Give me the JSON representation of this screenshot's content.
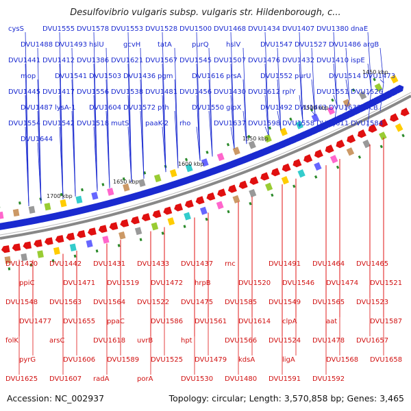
{
  "title": "Desulfovibrio vulgaris subsp. vulgaris str. Hildenborough, c...",
  "footer": {
    "accession": "Accession: NC_002937",
    "summary": "Topology: circular; Length: 3,570,858 bp; Genes: 3,465"
  },
  "colors": {
    "forward": "#1a2ad0",
    "reverse": "#e01010",
    "backbone": "#888888",
    "tick": "#2a8a2a"
  },
  "kbp_labels": [
    "1450 kbp",
    "1500 kbp",
    "1550 kbp",
    "1600 kbp",
    "1650 kbp",
    "1700 kbp"
  ],
  "top_genes": [
    "cysS",
    "DVU1555",
    "DVU1578",
    "DVU1553",
    "DVU1528",
    "DVU1500",
    "DVU1468",
    "DVU1434",
    "DVU1407",
    "DVU1380",
    "dnaE",
    "DVU1488",
    "DVU1493",
    "hslU",
    "gcvH",
    "tatA",
    "purQ",
    "hslV",
    "DVU1547",
    "DVU1527",
    "DVU1486",
    "argB",
    "DVU1441",
    "DVU1412",
    "DVU1386",
    "DVU1621",
    "DVU1567",
    "DVU1545",
    "DVU1507",
    "DVU1476",
    "DVU1432",
    "DVU1410",
    "ispE",
    "mop",
    "DVU1541",
    "DVU1503",
    "DVU1436",
    "pgm",
    "DVU1616",
    "prsA",
    "DVU1552",
    "purU",
    "DVU1514",
    "DVU1473",
    "DVU1445",
    "DVU1417",
    "DVU1556",
    "DVU1538",
    "DVU1481",
    "DVU1456",
    "DVU1430",
    "DVU1612",
    "rplY",
    "DVU1551",
    "DVU1526",
    "DVU1487",
    "lysA-1",
    "DVU1604",
    "DVU1572",
    "pth",
    "DVU1550",
    "glpX",
    "DVU1492",
    "DVU1463",
    "DVU1638",
    "crcB",
    "DVU1554",
    "DVU1542",
    "DVU1518",
    "mutS",
    "paaK-2",
    "rho",
    "DVU1637",
    "DVU1598",
    "DVU1558",
    "DVU1611",
    "DVU1584",
    "DVU1644"
  ],
  "bottom_genes": [
    "DVU1420",
    "DVU1442",
    "DVU1431",
    "DVU1433",
    "DVU1437",
    "rnc",
    "DVU1491",
    "DVU1464",
    "DVU1465",
    "ppiC",
    "DVU1471",
    "DVU1519",
    "DVU1472",
    "hrpB",
    "DVU1520",
    "DVU1546",
    "DVU1474",
    "DVU1521",
    "DVU1548",
    "DVU1563",
    "DVU1564",
    "DVU1522",
    "DVU1475",
    "DVU1585",
    "DVU1549",
    "DVU1565",
    "DVU1523",
    "DVU1477",
    "DVU1655",
    "ppaC",
    "DVU1586",
    "DVU1561",
    "DVU1614",
    "clpA",
    "aat",
    "DVU1587",
    "folK",
    "arsC",
    "DVU1618",
    "uvrB",
    "hpt",
    "DVU1566",
    "DVU1524",
    "DVU1478",
    "DVU1657",
    "pyrG",
    "DVU1606",
    "DVU1589",
    "DVU1525",
    "DVU1479",
    "kdsA",
    "ligA",
    "DVU1568",
    "DVU1658",
    "DVU1625",
    "DVU1607",
    "radA",
    "porA",
    "DVU1530",
    "DVU1480",
    "DVU1591",
    "DVU1592"
  ]
}
